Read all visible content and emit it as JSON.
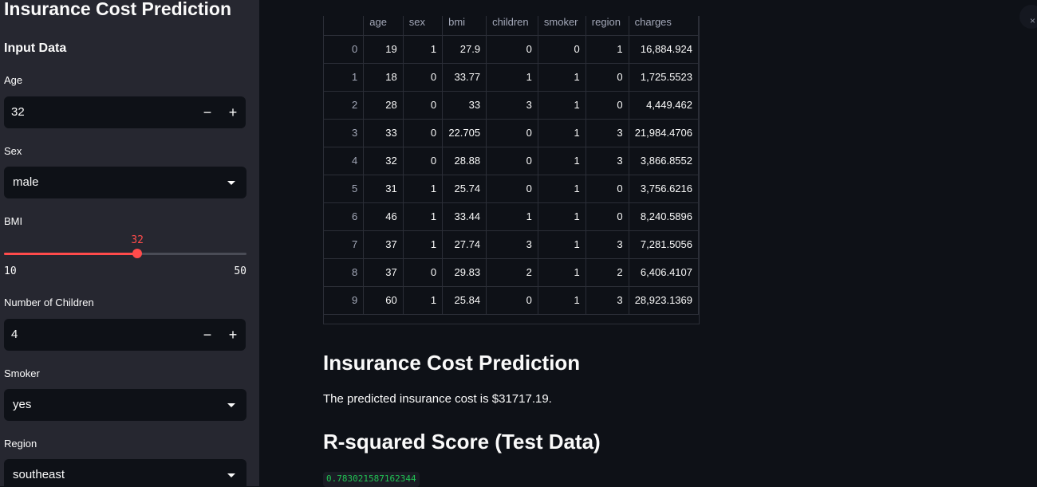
{
  "sidebar": {
    "title": "Insurance Cost Prediction",
    "subtitle": "Input Data",
    "age": {
      "label": "Age",
      "value": "32"
    },
    "sex": {
      "label": "Sex",
      "value": "male"
    },
    "bmi": {
      "label": "BMI",
      "value": "32",
      "min": "10",
      "max": "50",
      "fraction": 0.55
    },
    "children": {
      "label": "Number of Children",
      "value": "4"
    },
    "smoker": {
      "label": "Smoker",
      "value": "yes"
    },
    "region": {
      "label": "Region",
      "value": "southeast"
    },
    "minus_symbol": "−",
    "plus_symbol": "+"
  },
  "table": {
    "columns": [
      "",
      "age",
      "sex",
      "bmi",
      "children",
      "smoker",
      "region",
      "charges"
    ],
    "rows": [
      [
        "0",
        "19",
        "1",
        "27.9",
        "0",
        "0",
        "1",
        "16,884.924"
      ],
      [
        "1",
        "18",
        "0",
        "33.77",
        "1",
        "1",
        "0",
        "1,725.5523"
      ],
      [
        "2",
        "28",
        "0",
        "33",
        "3",
        "1",
        "0",
        "4,449.462"
      ],
      [
        "3",
        "33",
        "0",
        "22.705",
        "0",
        "1",
        "3",
        "21,984.4706"
      ],
      [
        "4",
        "32",
        "0",
        "28.88",
        "0",
        "1",
        "3",
        "3,866.8552"
      ],
      [
        "5",
        "31",
        "1",
        "25.74",
        "0",
        "1",
        "0",
        "3,756.6216"
      ],
      [
        "6",
        "46",
        "1",
        "33.44",
        "1",
        "1",
        "0",
        "8,240.5896"
      ],
      [
        "7",
        "37",
        "1",
        "27.74",
        "3",
        "1",
        "3",
        "7,281.5056"
      ],
      [
        "8",
        "37",
        "0",
        "29.83",
        "2",
        "1",
        "2",
        "6,406.4107"
      ],
      [
        "9",
        "60",
        "1",
        "25.84",
        "0",
        "1",
        "3",
        "28,923.1369"
      ]
    ]
  },
  "main": {
    "prediction_heading": "Insurance Cost Prediction",
    "prediction_text": "The predicted insurance cost is $31717.19.",
    "r2_heading": "R-squared Score (Test Data)",
    "r2_value": "0.783021587162344"
  },
  "colors": {
    "accent": "#ff4b4b",
    "code_green": "#21c354",
    "sidebar_bg": "#262730",
    "main_bg": "#0e1117"
  }
}
